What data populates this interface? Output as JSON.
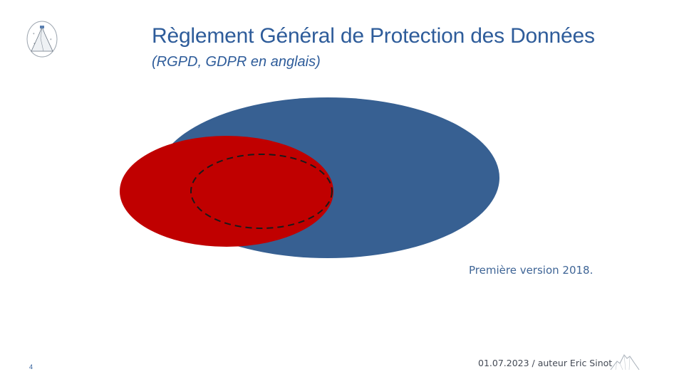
{
  "slide": {
    "title": "Règlement Général de Protection des Données",
    "subtitle": "(RGPD, GDPR en anglais)",
    "caption": "Première version 2018.",
    "page_number": "4",
    "footer": "01.07.2023 / auteur Eric Sinot"
  },
  "colors": {
    "title": "#2E5C9A",
    "large_ellipse": "#376092",
    "small_ellipse": "#C00000",
    "dashed_outline": "#1a1a1a"
  },
  "icons": {
    "header_logo": "mountain-crest-logo-icon",
    "footer_logo": "mountain-sketch-icon"
  }
}
